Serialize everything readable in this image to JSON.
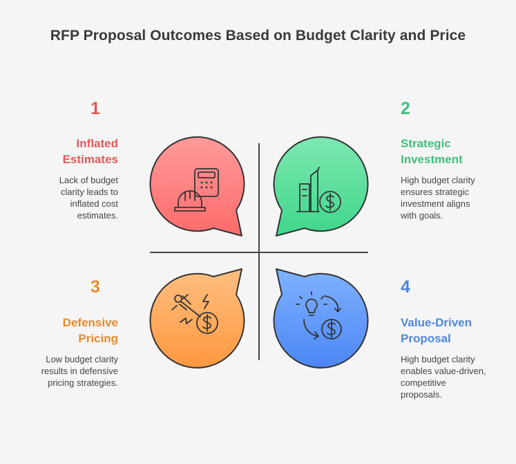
{
  "title": "RFP Proposal Outcomes Based on Budget Clarity and Price",
  "quadrants": [
    {
      "number": "1",
      "heading": "Inflated\nEstimates",
      "description": "Lack of budget\nclarity leads to\ninflated cost\nestimates.",
      "color": "#e05a5a",
      "icon": "calculator-hardhat-icon"
    },
    {
      "number": "2",
      "heading": "Strategic\nInvestment",
      "description": "High budget clarity\nensures strategic\ninvestment aligns\nwith goals.",
      "color": "#3fbf7f",
      "icon": "buildings-dollar-icon"
    },
    {
      "number": "3",
      "heading": "Defensive\nPricing",
      "description": "Low budget clarity\nresults in defensive\npricing strategies.",
      "color": "#e88a2e",
      "icon": "sword-dollar-icon"
    },
    {
      "number": "4",
      "heading": "Value-Driven\nProposal",
      "description": "High budget clarity\nenables value-driven,\ncompetitive\nproposals.",
      "color": "#4f86e0",
      "icon": "lightbulb-cycle-dollar-icon"
    }
  ]
}
